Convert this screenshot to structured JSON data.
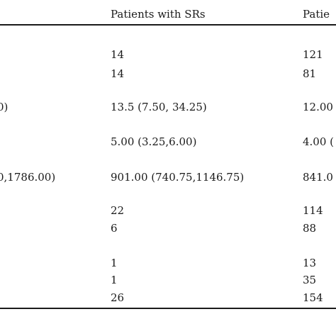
{
  "table": {
    "header": {
      "col_a": "Patients with SRs",
      "col_b": "Patie"
    },
    "rows": [
      {
        "left": "",
        "a": "14",
        "b": "121"
      },
      {
        "left": "",
        "a": "14",
        "b": "81"
      },
      {
        "left": "0)",
        "a": "13.5 (7.50, 34.25)",
        "b": "12.00"
      },
      {
        "left": "",
        "a": "5.00 (3.25,6.00)",
        "b": "4.00 ("
      },
      {
        "left": "0,1786.00)",
        "a": "901.00 (740.75,1146.75)",
        "b": "841.0"
      },
      {
        "left": "",
        "a": "22",
        "b": "114"
      },
      {
        "left": "",
        "a": "6",
        "b": "88"
      },
      {
        "left": "",
        "a": "1",
        "b": "13"
      },
      {
        "left": "",
        "a": "1",
        "b": "35"
      },
      {
        "left": "",
        "a": "26",
        "b": "154"
      }
    ]
  }
}
